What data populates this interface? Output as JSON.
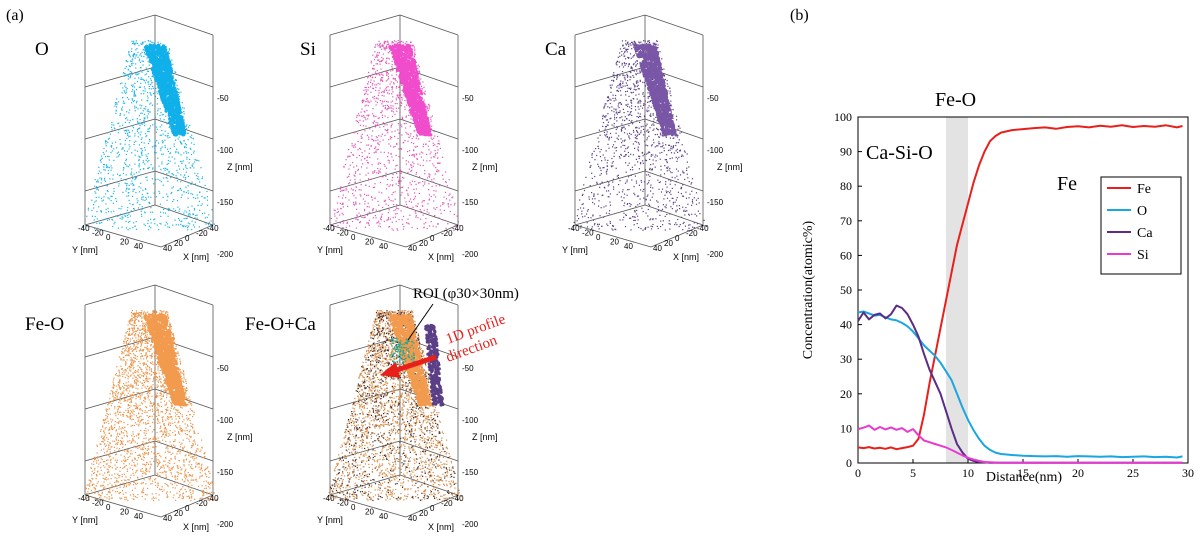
{
  "panel_a": {
    "label": "(a)",
    "axis_labels": {
      "z": "Z [nm]",
      "y": "Y [nm]",
      "x": "X [nm]"
    },
    "z_ticks": [
      "-50",
      "-100",
      "-150",
      "-200"
    ],
    "y_ticks": [
      "-40",
      "-20",
      "0",
      "20",
      "40"
    ],
    "x_ticks": [
      "40",
      "20",
      "0",
      "-20",
      "-40"
    ],
    "maps": [
      {
        "title": "O",
        "color": "#1eb4e6",
        "cap_color": "#10b0ea",
        "z_ticks_shown": true
      },
      {
        "title": "Si",
        "color": "#e056b8",
        "cap_color": "#f04ccc",
        "z_ticks_shown": true
      },
      {
        "title": "Ca",
        "color": "#5b3f86",
        "cap_color": "#7a56a6",
        "z_ticks_shown": true
      },
      {
        "title": "Fe-O",
        "color": "#e9944a",
        "cap_color": "#f29a4e",
        "z_ticks_shown": true
      },
      {
        "title": "Fe-O+Ca",
        "color": "#d68a45",
        "cap_color": "#f29a4e",
        "z_ticks_shown": true
      }
    ],
    "roi_label": "ROI (φ30×30nm)",
    "profile_label_line1": "1D profile",
    "profile_label_line2": "direction",
    "arrow_color": "#e8201c"
  },
  "panel_b": {
    "label": "(b)",
    "region_labels": {
      "left": "Ca-Si-O",
      "middle": "Fe-O",
      "right": "Fe"
    }
  },
  "chart_data": {
    "type": "line",
    "title": "",
    "xlabel": "Distance(nm)",
    "ylabel": "Concentration(atomic%)",
    "xlim": [
      0,
      30
    ],
    "ylim": [
      0,
      100
    ],
    "x_ticks": [
      0,
      5,
      10,
      15,
      20,
      25,
      30
    ],
    "y_ticks": [
      0,
      10,
      20,
      30,
      40,
      50,
      60,
      70,
      80,
      90,
      100
    ],
    "grid": false,
    "legend_position": "right",
    "shaded_region": [
      8,
      10
    ],
    "series": [
      {
        "name": "Fe",
        "color": "#e8201c",
        "x": [
          0,
          0.5,
          1,
          1.5,
          2,
          2.5,
          3,
          3.5,
          4,
          4.5,
          5,
          5.5,
          6,
          6.5,
          7,
          7.5,
          8,
          8.5,
          9,
          9.5,
          10,
          10.5,
          11,
          11.5,
          12,
          12.5,
          13,
          14,
          15,
          16,
          17,
          18,
          19,
          20,
          21,
          22,
          23,
          24,
          25,
          26,
          27,
          28,
          29,
          29.5
        ],
        "y": [
          4.5,
          4.3,
          4.6,
          4.2,
          4.4,
          4.1,
          4.5,
          4.0,
          4.3,
          4.6,
          5.0,
          7,
          14,
          23,
          31,
          39,
          47,
          55,
          63,
          69,
          75,
          81,
          86,
          90,
          93,
          94.5,
          95.5,
          96.2,
          96.5,
          96.8,
          97.0,
          96.6,
          97.1,
          97.3,
          97.0,
          97.5,
          97.2,
          97.6,
          97.1,
          97.4,
          97.2,
          97.6,
          97.0,
          97.4
        ]
      },
      {
        "name": "O",
        "color": "#1aa6e0",
        "x": [
          0,
          0.5,
          1,
          1.5,
          2,
          2.5,
          3,
          3.5,
          4,
          4.5,
          5,
          5.5,
          6,
          6.5,
          7,
          7.5,
          8,
          8.5,
          9,
          9.5,
          10,
          10.5,
          11,
          11.5,
          12,
          12.5,
          13,
          14,
          15,
          16,
          17,
          18,
          19,
          20,
          21,
          22,
          23,
          24,
          25,
          26,
          27,
          28,
          29,
          29.5
        ],
        "y": [
          43.5,
          43.8,
          43.2,
          42.6,
          42.8,
          42.1,
          41.5,
          41.2,
          40.5,
          39.5,
          38.0,
          36.0,
          34.0,
          32.5,
          31.0,
          29.0,
          26.5,
          24.0,
          20.0,
          16.0,
          12.5,
          9.5,
          7.0,
          5.0,
          3.8,
          3.0,
          2.6,
          2.3,
          2.1,
          2.0,
          1.9,
          2.0,
          1.8,
          2.0,
          1.9,
          1.8,
          1.9,
          1.7,
          1.8,
          1.9,
          1.7,
          1.8,
          1.6,
          1.9
        ]
      },
      {
        "name": "Ca",
        "color": "#5b2c86",
        "x": [
          0,
          0.5,
          1,
          1.5,
          2,
          2.5,
          3,
          3.5,
          4,
          4.5,
          5,
          5.5,
          6,
          6.5,
          7,
          7.5,
          8,
          8.5,
          9,
          9.5,
          10,
          10.5,
          11,
          11.5,
          12,
          13,
          14,
          15,
          16,
          18,
          20,
          22,
          24,
          26,
          28,
          29.5
        ],
        "y": [
          41.0,
          43.5,
          41.5,
          42.8,
          43.2,
          41.8,
          43.0,
          45.5,
          44.8,
          43.0,
          40.0,
          36.5,
          31.5,
          27.0,
          23.5,
          20.0,
          15.0,
          10.0,
          5.5,
          3.0,
          1.2,
          0.6,
          0.3,
          0.2,
          0.1,
          0.1,
          0.1,
          0.1,
          0.1,
          0.1,
          0.1,
          0.1,
          0.1,
          0.1,
          0.1,
          0.1
        ]
      },
      {
        "name": "Si",
        "color": "#e83ad2",
        "x": [
          0,
          0.5,
          1,
          1.5,
          2,
          2.5,
          3,
          3.5,
          4,
          4.5,
          5,
          5.5,
          6,
          6.5,
          7,
          7.5,
          8,
          8.5,
          9,
          9.5,
          10,
          10.5,
          11,
          11.5,
          12,
          13,
          14,
          15,
          16,
          18,
          20,
          22,
          24,
          26,
          28,
          29.5
        ],
        "y": [
          9.8,
          10.2,
          10.8,
          9.6,
          10.4,
          9.7,
          10.3,
          9.6,
          10.1,
          9.0,
          9.8,
          8.0,
          6.5,
          6.0,
          5.5,
          5.0,
          4.5,
          3.8,
          3.0,
          2.2,
          1.5,
          1.0,
          0.6,
          0.3,
          0.2,
          0.1,
          0.1,
          0.1,
          0.1,
          0.1,
          0.1,
          0.1,
          0.1,
          0.1,
          0.1,
          0.1
        ]
      }
    ]
  }
}
